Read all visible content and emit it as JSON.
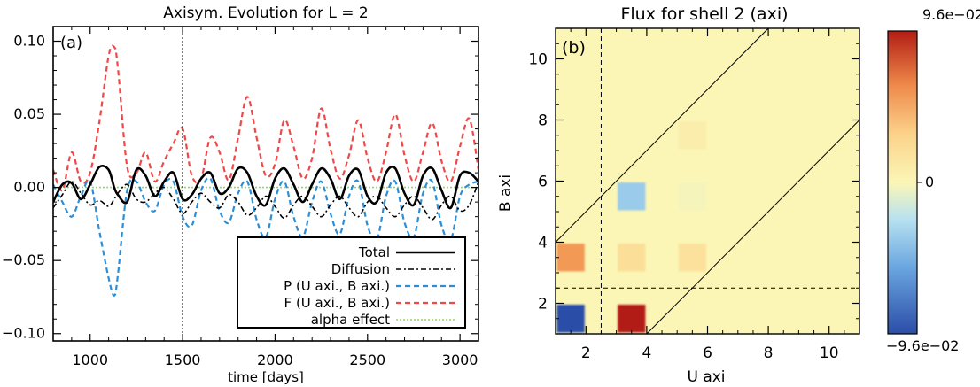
{
  "chart_data": [
    {
      "type": "line",
      "title": "Axisym. Evolution for L = 2",
      "panel_label": "(a)",
      "xlabel": "time [days]",
      "ylabel": "",
      "xlim": [
        800,
        3100
      ],
      "ylim": [
        -0.105,
        0.11
      ],
      "xticks": [
        1000,
        1500,
        2000,
        2500,
        3000
      ],
      "xtick_labels": [
        "1000",
        "1500",
        "2000",
        "2500",
        "3000"
      ],
      "yticks": [
        -0.1,
        -0.05,
        0.0,
        0.05,
        0.1
      ],
      "ytick_labels": [
        "−0.10",
        "−0.05",
        "0.00",
        "0.05",
        "0.10"
      ],
      "vline_x": 1500,
      "legend_position": "bottom-right",
      "x": [
        800,
        850,
        900,
        950,
        1000,
        1050,
        1100,
        1130,
        1150,
        1200,
        1250,
        1300,
        1350,
        1400,
        1450,
        1500,
        1550,
        1600,
        1650,
        1700,
        1750,
        1800,
        1850,
        1900,
        1950,
        2000,
        2050,
        2100,
        2150,
        2200,
        2250,
        2300,
        2350,
        2400,
        2450,
        2500,
        2550,
        2600,
        2650,
        2700,
        2750,
        2800,
        2850,
        2900,
        2950,
        3000,
        3050,
        3100
      ],
      "series": [
        {
          "name": "Total",
          "color": "#000000",
          "dash": "solid",
          "width": 2.6,
          "values": [
            -0.01,
            0.002,
            0.003,
            -0.008,
            0.002,
            0.014,
            0.012,
            0.0,
            -0.005,
            -0.01,
            0.012,
            0.008,
            -0.006,
            0.004,
            0.01,
            -0.008,
            -0.005,
            0.006,
            0.01,
            -0.004,
            0.0,
            0.013,
            0.01,
            -0.006,
            -0.012,
            0.006,
            0.013,
            0.002,
            -0.01,
            0.002,
            0.013,
            0.006,
            -0.008,
            0.008,
            0.012,
            -0.006,
            -0.01,
            0.01,
            0.013,
            -0.004,
            -0.012,
            0.008,
            0.013,
            -0.002,
            -0.014,
            0.008,
            0.01,
            0.004
          ]
        },
        {
          "name": "Diffusion",
          "color": "#000000",
          "dash": "dashdot",
          "width": 1.6,
          "values": [
            -0.014,
            -0.005,
            0.004,
            -0.004,
            -0.012,
            -0.009,
            -0.013,
            -0.008,
            -0.004,
            0.002,
            -0.008,
            -0.01,
            -0.004,
            0.0,
            -0.008,
            -0.018,
            -0.01,
            -0.004,
            -0.01,
            -0.014,
            -0.005,
            -0.01,
            -0.019,
            -0.014,
            -0.006,
            -0.013,
            -0.021,
            -0.012,
            -0.006,
            -0.013,
            -0.02,
            -0.012,
            -0.006,
            -0.014,
            -0.02,
            -0.01,
            -0.006,
            -0.014,
            -0.02,
            -0.012,
            -0.006,
            -0.014,
            -0.022,
            -0.012,
            -0.006,
            -0.016,
            -0.012,
            0.004
          ]
        },
        {
          "name": "P (U axi., B axi.)",
          "color": "#2a8fd8",
          "dash": "dash",
          "width": 2.2,
          "values": [
            0.002,
            -0.01,
            -0.02,
            -0.006,
            0.004,
            -0.03,
            -0.062,
            -0.074,
            -0.06,
            -0.002,
            0.004,
            -0.01,
            -0.016,
            0.002,
            0.004,
            -0.02,
            -0.026,
            -0.002,
            0.006,
            -0.016,
            -0.024,
            -0.004,
            0.004,
            -0.022,
            -0.034,
            -0.008,
            0.004,
            -0.02,
            -0.034,
            -0.01,
            0.004,
            -0.018,
            -0.032,
            -0.006,
            0.004,
            -0.026,
            -0.036,
            -0.006,
            0.004,
            -0.024,
            -0.034,
            -0.004,
            0.004,
            -0.026,
            -0.036,
            -0.006,
            0.002,
            0.004
          ]
        },
        {
          "name": "F (U axi., B axi.)",
          "color": "#f04848",
          "dash": "dash",
          "width": 2.2,
          "values": [
            0.012,
            -0.002,
            0.024,
            0.004,
            0.01,
            0.045,
            0.09,
            0.096,
            0.082,
            0.014,
            0.01,
            0.024,
            0.004,
            0.018,
            0.03,
            0.04,
            0.008,
            0.006,
            0.034,
            0.024,
            0.005,
            0.034,
            0.062,
            0.034,
            0.008,
            0.016,
            0.046,
            0.028,
            0.006,
            0.02,
            0.054,
            0.026,
            0.006,
            0.022,
            0.046,
            0.02,
            0.004,
            0.024,
            0.05,
            0.022,
            0.004,
            0.024,
            0.044,
            0.018,
            0.004,
            0.028,
            0.047,
            0.012
          ]
        },
        {
          "name": "alpha effect",
          "color": "#8fd86a",
          "dash": "dot",
          "width": 1.6,
          "values": [
            0.0,
            0.0,
            0.0,
            0.0,
            0.0,
            0.0,
            0.0,
            0.0,
            0.0,
            0.0,
            0.0,
            0.0,
            0.0,
            0.0,
            0.0,
            0.0,
            0.0,
            0.0,
            0.0,
            0.0,
            0.0,
            0.0,
            0.0,
            0.0,
            0.0,
            0.0,
            0.0,
            0.0,
            0.0,
            0.0,
            0.0,
            0.0,
            0.0,
            0.0,
            0.0,
            0.0,
            0.0,
            0.0,
            0.0,
            0.0,
            0.0,
            0.0,
            0.0,
            0.0,
            0.0,
            0.0,
            0.0,
            0.0
          ]
        }
      ]
    },
    {
      "type": "heatmap",
      "title": "Flux for shell 2 (axi)",
      "panel_label": "(b)",
      "xlabel": "U axi",
      "ylabel": "B axi",
      "xlim": [
        1,
        11
      ],
      "ylim": [
        1,
        11
      ],
      "xticks": [
        2,
        4,
        6,
        8,
        10
      ],
      "xtick_labels": [
        "2",
        "4",
        "6",
        "8",
        "10"
      ],
      "yticks": [
        2,
        4,
        6,
        8,
        10
      ],
      "ytick_labels": [
        "2",
        "4",
        "6",
        "8",
        "10"
      ],
      "background_value": 0.0,
      "cells": [
        {
          "x": 1.5,
          "y": 1.5,
          "value": -0.096
        },
        {
          "x": 3.5,
          "y": 1.5,
          "value": 0.096
        },
        {
          "x": 1.5,
          "y": 3.5,
          "value": 0.055
        },
        {
          "x": 3.5,
          "y": 3.5,
          "value": 0.02
        },
        {
          "x": 5.5,
          "y": 3.5,
          "value": 0.018
        },
        {
          "x": 3.5,
          "y": 5.5,
          "value": -0.035
        },
        {
          "x": 5.5,
          "y": 5.5,
          "value": -0.002
        },
        {
          "x": 5.5,
          "y": 7.5,
          "value": 0.008
        }
      ],
      "dashed_x": 2.5,
      "dashed_y": 2.5,
      "diagonals": [
        [
          1,
          4,
          8,
          11
        ],
        [
          4,
          1,
          11,
          8
        ]
      ],
      "colorbar": {
        "min": -0.096,
        "max": 0.096,
        "top_label": "9.6e−02",
        "mid_label": "0",
        "bottom_label": "−9.6e−02"
      }
    }
  ]
}
